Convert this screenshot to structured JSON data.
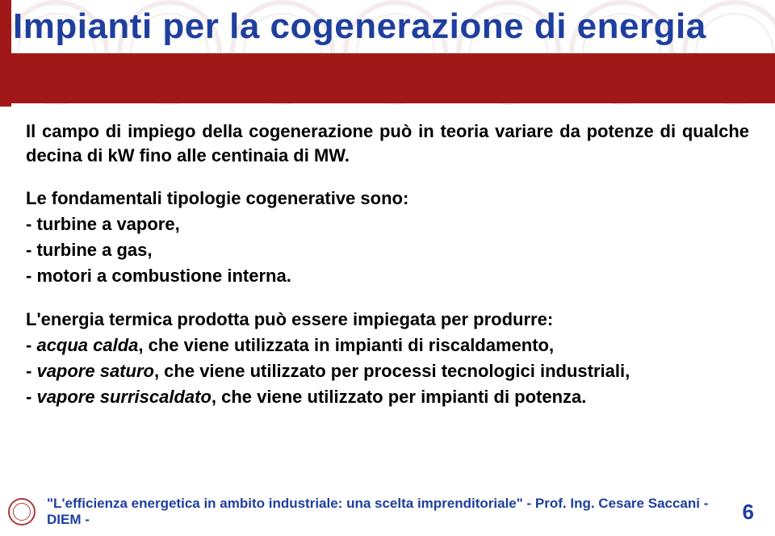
{
  "title": "Impianti per la cogenerazione di energia",
  "intro": "Il campo di impiego della cogenerazione può in teoria variare da potenze di qualche decina di kW fino alle centinaia di MW.",
  "types_lead": "Le fondamentali tipologie cogenerative sono:",
  "types": [
    "- turbine a vapore,",
    "- turbine a gas,",
    "- motori a combustione interna."
  ],
  "uses_lead": "L'energia termica prodotta può essere impiegata per produrre:",
  "uses": [
    {
      "pre": "- ",
      "it": "acqua calda",
      "post": ",  che viene utilizzata in impianti di riscaldamento,"
    },
    {
      "pre": "- ",
      "it": "vapore saturo",
      "post": ",  che viene utilizzato per processi tecnologici industriali,"
    },
    {
      "pre": "- ",
      "it": "vapore surriscaldato",
      "post": ", che viene utilizzato per impianti di potenza."
    }
  ],
  "footer": "\"L'efficienza energetica in ambito industriale: una scelta imprenditoriale\" - Prof. Ing. Cesare Saccani - DIEM -",
  "page": "6"
}
